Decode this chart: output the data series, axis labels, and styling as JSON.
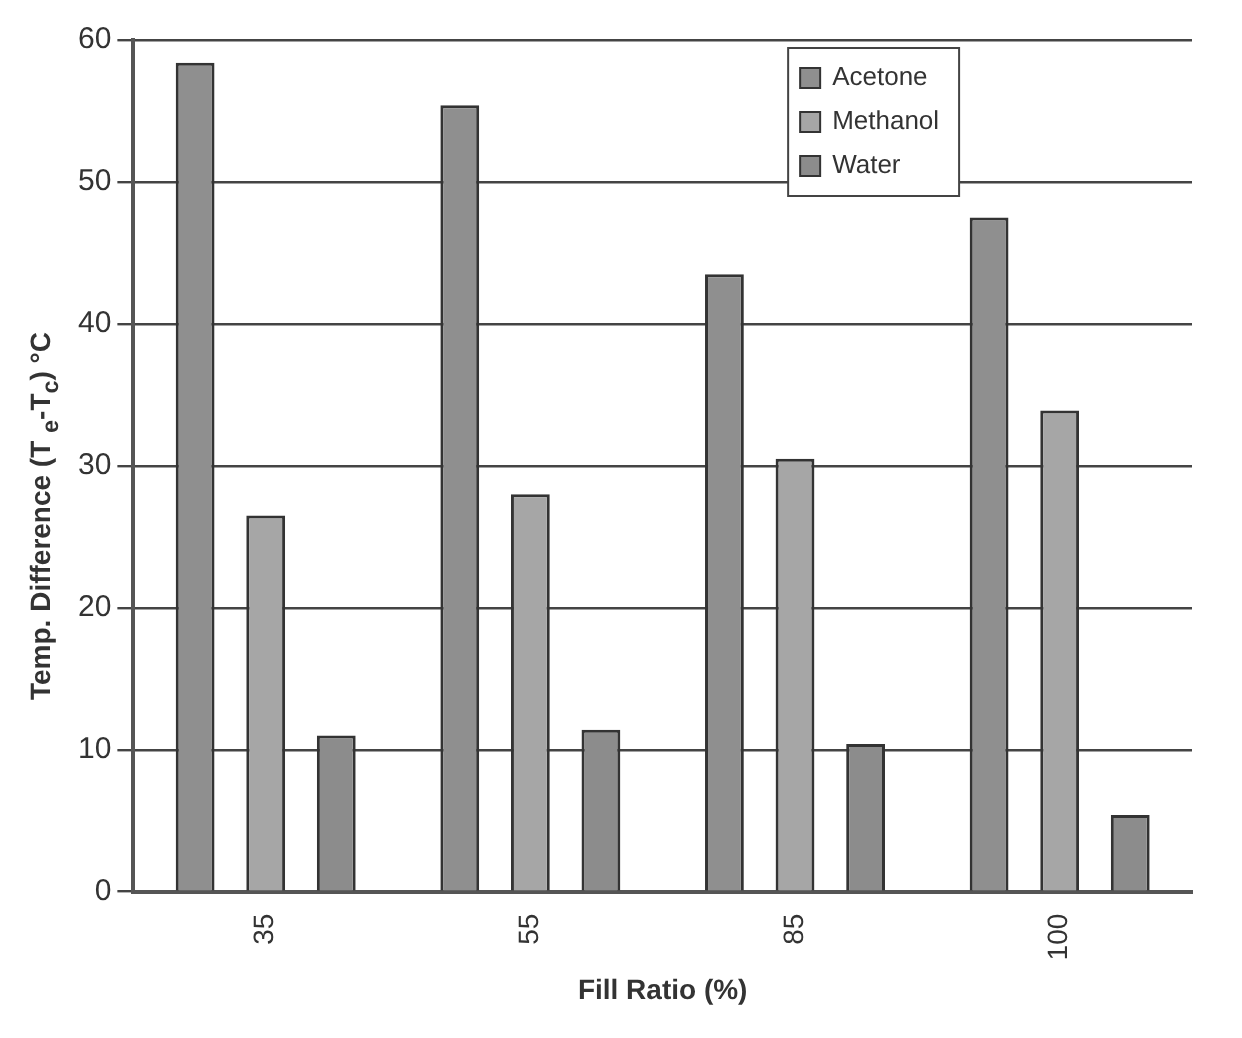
{
  "chart_data": {
    "type": "bar",
    "xlabel": "Fill Ratio (%)",
    "ylabel": "Temp. Difference (T $_{e}$-T$_{c}$) °C",
    "categories": [
      "35",
      "55",
      "85",
      "100"
    ],
    "series": [
      {
        "name": "Acetone",
        "color": "#8f8f8f",
        "values": [
          58.4,
          55.4,
          43.5,
          47.5
        ]
      },
      {
        "name": "Methanol",
        "color": "#a6a6a6",
        "values": [
          26.5,
          28,
          30.5,
          33.9
        ]
      },
      {
        "name": "Water",
        "color": "#8c8c8c",
        "values": [
          11,
          11.4,
          10.4,
          5.4
        ]
      }
    ],
    "ylim": [
      0,
      60
    ],
    "yticks": [
      0,
      10,
      20,
      30,
      40,
      50,
      60
    ],
    "grid": "y",
    "legend": "top right"
  }
}
